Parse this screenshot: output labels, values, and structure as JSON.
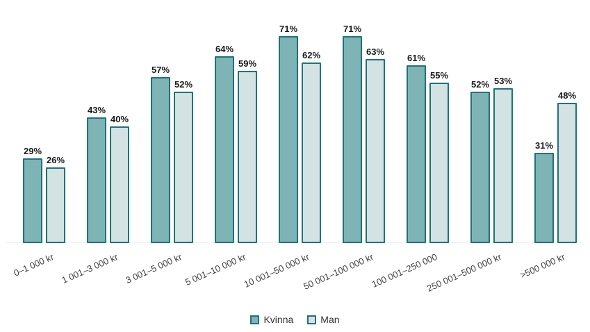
{
  "chart_data": {
    "type": "bar",
    "categories": [
      "0–1 000 kr",
      "1 001–3 000 kr",
      "3 001–5 000 kr",
      "5 001–10 000 kr",
      "10 001–50 000 kr",
      "50 001–100 000 kr",
      "100 001–250 000",
      "250 001–500 000 kr",
      ">500 000 kr"
    ],
    "series": [
      {
        "name": "Kvinna",
        "color": "#7eb4b6",
        "values": [
          29,
          43,
          57,
          64,
          71,
          71,
          61,
          52,
          31
        ]
      },
      {
        "name": "Man",
        "color": "#d3e2e2",
        "values": [
          26,
          40,
          52,
          59,
          62,
          63,
          55,
          53,
          48
        ]
      }
    ],
    "value_suffix": "%",
    "data_labels": true,
    "ylim": [
      0,
      80
    ],
    "grid": false,
    "legend_position": "bottom",
    "bar_border_color": "#1e7378",
    "axis_line_color": "#ededed"
  }
}
